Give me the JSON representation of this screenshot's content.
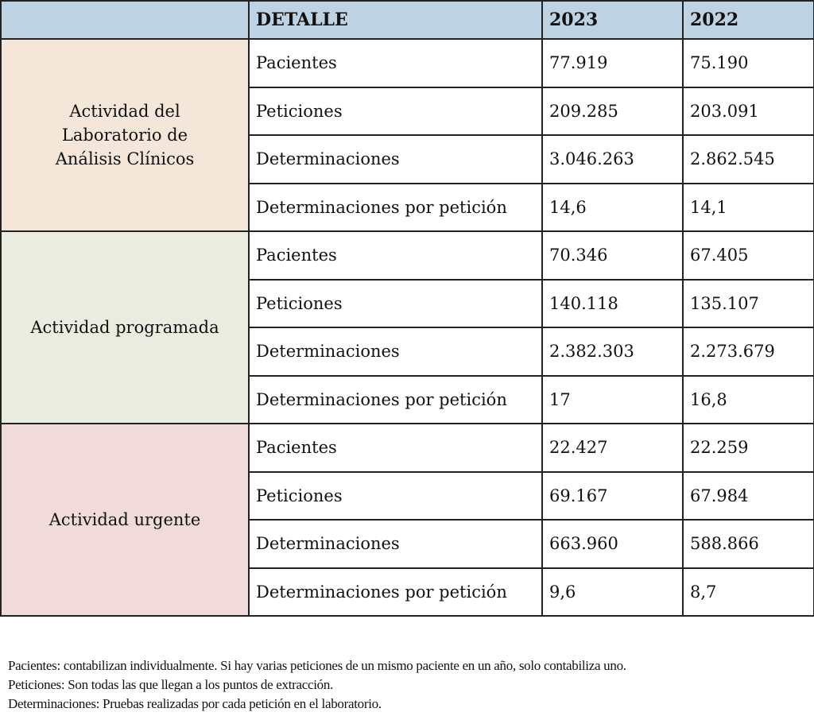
{
  "table": {
    "headers": [
      "",
      "DETALLE",
      "2023",
      "2022"
    ],
    "groups": [
      {
        "label": "Actividad del Laboratorio de Análisis Clínicos",
        "color": "#f5e6da",
        "rows": [
          {
            "detalle": "Pacientes",
            "y2023": "77.919",
            "y2022": "75.190"
          },
          {
            "detalle": "Peticiones",
            "y2023": "209.285",
            "y2022": "203.091"
          },
          {
            "detalle": "Determinaciones",
            "y2023": "3.046.263",
            "y2022": "2.862.545"
          },
          {
            "detalle": "Determinaciones por petición",
            "y2023": "14,6",
            "y2022": "14,1"
          }
        ]
      },
      {
        "label": "Actividad programada",
        "color": "#e9ecdf",
        "rows": [
          {
            "detalle": "Pacientes",
            "y2023": "70.346",
            "y2022": "67.405"
          },
          {
            "detalle": "Peticiones",
            "y2023": "140.118",
            "y2022": "135.107"
          },
          {
            "detalle": "Determinaciones",
            "y2023": "2.382.303",
            "y2022": "2.273.679"
          },
          {
            "detalle": "Determinaciones por petición",
            "y2023": "17",
            "y2022": "16,8"
          }
        ]
      },
      {
        "label": "Actividad urgente",
        "color": "#f0dada",
        "rows": [
          {
            "detalle": "Pacientes",
            "y2023": "22.427",
            "y2022": "22.259"
          },
          {
            "detalle": "Peticiones",
            "y2023": "69.167",
            "y2022": "67.984"
          },
          {
            "detalle": "Determinaciones",
            "y2023": "663.960",
            "y2022": "588.866"
          },
          {
            "detalle": "Determinaciones por petición",
            "y2023": "9,6",
            "y2022": "8,7"
          }
        ]
      }
    ],
    "header_color": "#bdd3e3"
  },
  "notes": [
    "Pacientes: contabilizan individualmente. Si hay varias peticiones de un mismo paciente en un año, solo contabiliza uno.",
    "Peticiones: Son todas las que llegan a los puntos de extracción.",
    "Determinaciones: Pruebas realizadas por cada petición en el laboratorio."
  ]
}
